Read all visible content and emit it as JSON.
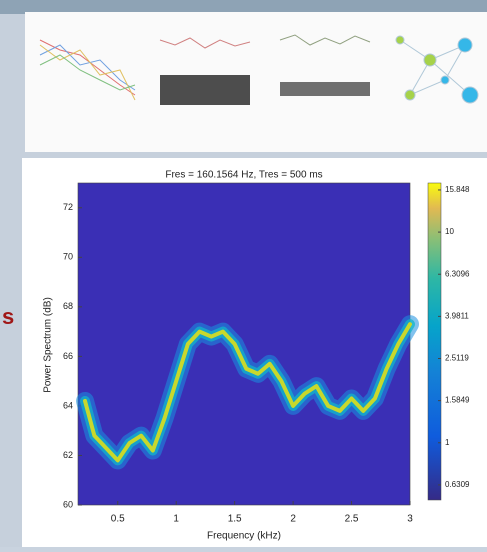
{
  "chart_data": {
    "type": "line",
    "title": "Fres = 160.1564 Hz, Tres = 500 ms",
    "x_label": "Frequency (kHz)",
    "y_label": "Power Spectrum (dB)",
    "x": [
      0.22,
      0.3,
      0.4,
      0.5,
      0.6,
      0.7,
      0.8,
      0.9,
      1.0,
      1.1,
      1.2,
      1.3,
      1.4,
      1.5,
      1.6,
      1.7,
      1.8,
      1.9,
      2.0,
      2.1,
      2.2,
      2.3,
      2.4,
      2.5,
      2.6,
      2.7,
      2.8,
      2.9,
      3.0
    ],
    "series": [
      {
        "color": "#c8d82c",
        "values": [
          64.2,
          62.8,
          62.3,
          61.8,
          62.5,
          62.8,
          62.2,
          63.5,
          65.0,
          66.5,
          67.0,
          66.8,
          67.0,
          66.5,
          65.5,
          65.3,
          65.7,
          65.0,
          64.0,
          64.5,
          64.8,
          64.0,
          63.8,
          64.3,
          63.8,
          64.3,
          65.5,
          66.5,
          67.3
        ]
      }
    ],
    "xlim": [
      0.16,
      3
    ],
    "xticks": [
      0.5,
      1,
      1.5,
      2,
      2.5,
      3
    ],
    "ylim": [
      60,
      73
    ],
    "yticks": [
      60,
      62,
      64,
      66,
      68,
      70,
      72
    ],
    "background": "#3a2fb5",
    "colorbar": {
      "clim": [
        0.535,
        17.1
      ],
      "log": true,
      "ticks": [
        15.848,
        10,
        6.3096,
        3.9811,
        2.5119,
        1.5849,
        1,
        0.6309
      ]
    },
    "side_text": "s"
  }
}
